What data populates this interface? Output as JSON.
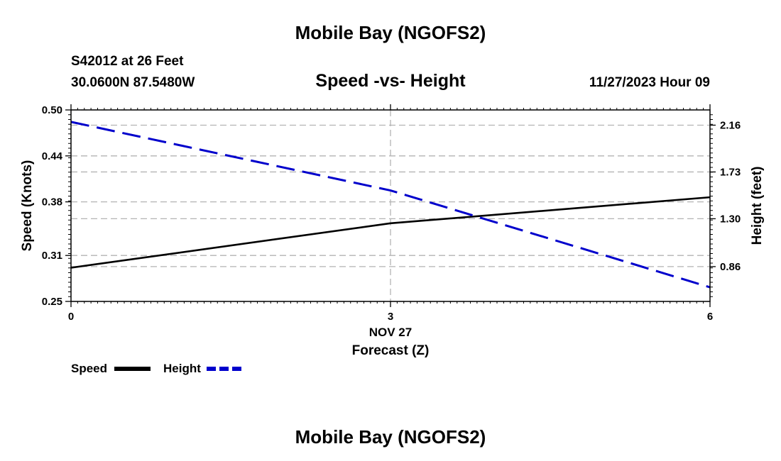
{
  "page": {
    "title_top": "Mobile Bay (NGOFS2)",
    "title_bottom": "Mobile Bay (NGOFS2)",
    "station": "S42012 at 26 Feet",
    "coords": "30.0600N  87.5480W",
    "datetime": "11/27/2023 Hour 09"
  },
  "chart_data": {
    "type": "line",
    "title": "Speed -vs- Height",
    "xlabel": "Forecast (Z)",
    "xdate_label": "NOV 27",
    "ylabel": "Speed (Knots)",
    "y2label": "Height (feet)",
    "x": [
      0,
      3,
      6
    ],
    "xticks": [
      "0",
      "3",
      "6"
    ],
    "xlim": [
      0,
      6
    ],
    "ylim": [
      0.25,
      0.5
    ],
    "yticks": [
      "0.50",
      "0.44",
      "0.38",
      "0.31",
      "0.25"
    ],
    "ytick_values": [
      0.5,
      0.44,
      0.38,
      0.31,
      0.25
    ],
    "y2lim": [
      0.54,
      2.3
    ],
    "y2ticks": [
      "2.16",
      "1.73",
      "1.30",
      "0.86"
    ],
    "y2tick_values": [
      2.16,
      1.73,
      1.3,
      0.86
    ],
    "grid": true,
    "series": [
      {
        "name": "Speed",
        "axis": "left",
        "color": "#000000",
        "style": "solid",
        "values": [
          0.294,
          0.352,
          0.386
        ]
      },
      {
        "name": "Height",
        "axis": "right",
        "color": "#0000cc",
        "style": "dashed",
        "values": [
          2.19,
          1.56,
          0.67
        ]
      }
    ],
    "legend": [
      {
        "label": "Speed",
        "color": "#000000",
        "style": "solid"
      },
      {
        "label": "Height",
        "color": "#0000cc",
        "style": "dashed"
      }
    ],
    "legend_position": "bottom-left"
  }
}
